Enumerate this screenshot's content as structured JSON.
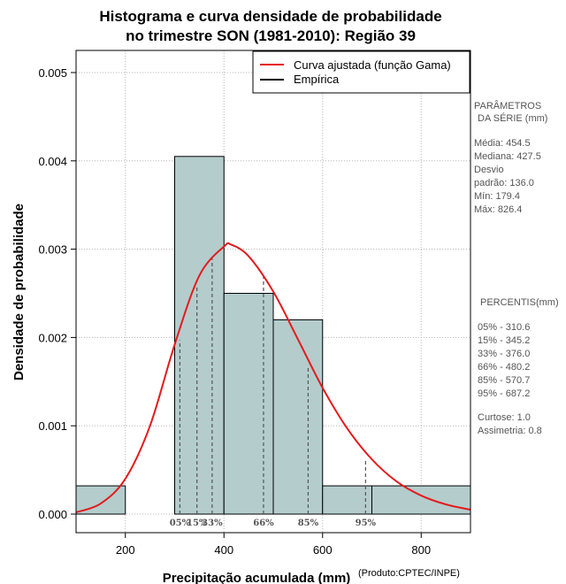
{
  "title_line1": "Histograma e curva densidade de probabilidade",
  "title_line2": "no trimestre SON (1981-2010): Região 39",
  "credit": "(Produto:CPTEC/INPE)",
  "legend": [
    {
      "label": "Curva ajustada (função Gama)",
      "color": "#e41a1c"
    },
    {
      "label": "Empírica",
      "color": "#000000"
    }
  ],
  "params": {
    "heading1": "PARÂMETROS",
    "heading2": "DA SÉRIE (mm)",
    "lines": [
      "Média:  454.5",
      "Mediana:  427.5",
      "Desvio",
      "padrão:  136.0",
      "Mín:  179.4",
      "Máx:  826.4"
    ]
  },
  "percentis": {
    "heading": "PERCENTIS(mm)",
    "lines": [
      "05% -   310.6",
      "15% -   345.2",
      "33% -   376.0",
      "66% -   480.2",
      "85% -   570.7",
      "95% -   687.2"
    ],
    "extra": [
      "Curtose:  1.0",
      "Assimetria:  0.8"
    ]
  },
  "chart_data": {
    "type": "histogram",
    "title": "Histograma e curva densidade de probabilidade no trimestre SON (1981-2010): Região 39",
    "xlabel": "Precipitação acumulada (mm)",
    "ylabel": "Densidade de probabilidade",
    "xlim": [
      100,
      900
    ],
    "ylim": [
      0,
      0.0052
    ],
    "x_ticks": [
      200,
      400,
      600,
      800
    ],
    "y_ticks": [
      0.0,
      0.001,
      0.002,
      0.003,
      0.004,
      0.005
    ],
    "y_tick_labels": [
      "0.000",
      "0.001",
      "0.002",
      "0.003",
      "0.004",
      "0.005"
    ],
    "bars": [
      {
        "x0": 100,
        "x1": 200,
        "density": 0.00032
      },
      {
        "x0": 200,
        "x1": 300,
        "density": 0.0
      },
      {
        "x0": 300,
        "x1": 400,
        "density": 0.00405
      },
      {
        "x0": 400,
        "x1": 500,
        "density": 0.0025
      },
      {
        "x0": 500,
        "x1": 600,
        "density": 0.0022
      },
      {
        "x0": 600,
        "x1": 700,
        "density": 0.00032
      },
      {
        "x0": 700,
        "x1": 900,
        "density": 0.00032
      }
    ],
    "fitted_curve": {
      "name": "Curva ajustada (função Gama)",
      "x": [
        100,
        150,
        200,
        250,
        300,
        350,
        400,
        415,
        450,
        500,
        550,
        600,
        650,
        700,
        750,
        800,
        850,
        900
      ],
      "y": [
        2e-05,
        0.00012,
        0.0004,
        0.001,
        0.00192,
        0.0027,
        0.00303,
        0.00305,
        0.00292,
        0.00252,
        0.00198,
        0.00143,
        0.00097,
        0.00062,
        0.00037,
        0.00021,
        0.00011,
        5e-05
      ]
    },
    "percentiles": [
      {
        "label": "05%",
        "value": 310.6,
        "density": 0.00197
      },
      {
        "label": "15%",
        "value": 345.2,
        "density": 0.00258
      },
      {
        "label": "33%",
        "value": 376.0,
        "density": 0.0029
      },
      {
        "label": "66%",
        "value": 480.2,
        "density": 0.0027
      },
      {
        "label": "85%",
        "value": 570.7,
        "density": 0.00168
      },
      {
        "label": "95%",
        "value": 687.2,
        "density": 0.00063
      }
    ]
  }
}
